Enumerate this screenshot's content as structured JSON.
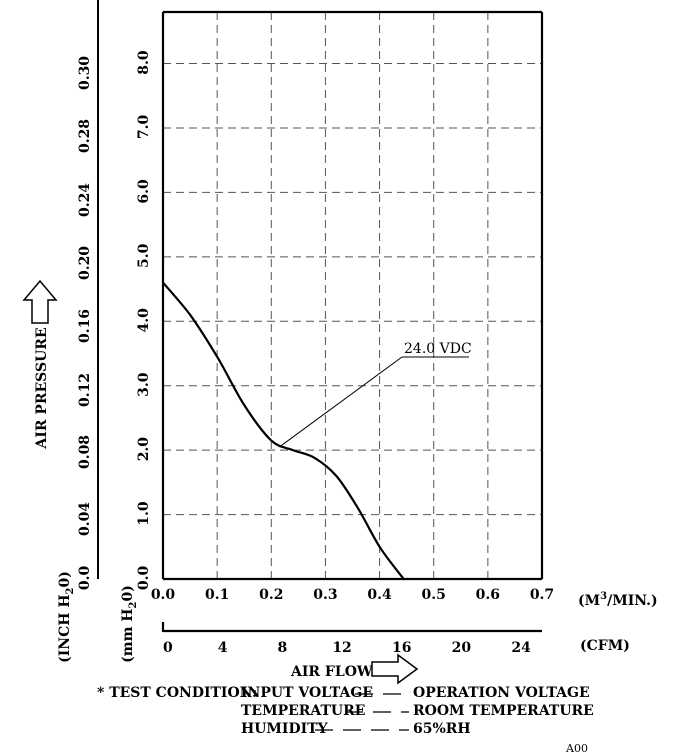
{
  "chart_data": {
    "type": "line",
    "title": "",
    "xlabel": "AIR FLOW",
    "ylabel": "AIR PRESSURE",
    "x_unit_primary": "(M3/MIN.)",
    "x_unit_secondary": "(CFM)",
    "y_unit_primary": "(mm H2O)",
    "y_unit_secondary": "(INCH H2O)",
    "xlim": [
      0,
      0.7
    ],
    "ylim": [
      0,
      8.8
    ],
    "x_ticks": [
      "0.0",
      "0.1",
      "0.2",
      "0.3",
      "0.4",
      "0.5",
      "0.6",
      "0.7"
    ],
    "x_ticks_cfm": [
      "0",
      "4",
      "8",
      "12",
      "16",
      "20",
      "24"
    ],
    "y_ticks_mm": [
      "0.0",
      "1.0",
      "2.0",
      "3.0",
      "4.0",
      "5.0",
      "6.0",
      "7.0",
      "8.0"
    ],
    "y_ticks_inch": [
      "0.0",
      "0.04",
      "0.08",
      "0.12",
      "0.16",
      "0.20",
      "0.24",
      "0.28",
      "0.30"
    ],
    "grid": true,
    "series": [
      {
        "name": "24.0 VDC",
        "x": [
          0.0,
          0.05,
          0.1,
          0.15,
          0.2,
          0.24,
          0.28,
          0.32,
          0.36,
          0.4,
          0.44,
          0.445
        ],
        "y": [
          4.6,
          4.1,
          3.45,
          2.7,
          2.15,
          2.0,
          1.88,
          1.6,
          1.1,
          0.5,
          0.05,
          0.0
        ]
      }
    ],
    "annotations": [
      {
        "text": "24.0 VDC",
        "x": 0.215,
        "y": 2.05
      }
    ]
  },
  "unit_labels": {
    "m3": "M",
    "m3_sup": "3",
    "m3_rest": "/MIN.",
    "cfm": "(CFM)",
    "mm": "mm H",
    "mm_sub": "2",
    "mm_rest": "0",
    "inch": "INCH H",
    "inch_sub": "2",
    "inch_rest": "0"
  },
  "test_condition": {
    "heading": "* TEST CONDITION:",
    "rows": [
      {
        "label": "INPUT VOLTAGE",
        "value": "OPERATION VOLTAGE"
      },
      {
        "label": "TEMPERATURE",
        "value": "ROOM TEMPERATURE"
      },
      {
        "label": "HUMIDITY",
        "value": "65%RH"
      }
    ]
  },
  "corner_mark": "A00"
}
